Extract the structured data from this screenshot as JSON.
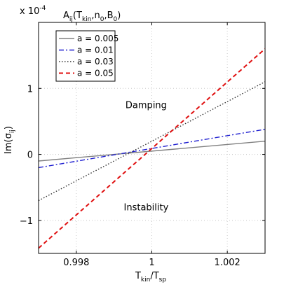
{
  "chart_data": {
    "type": "line",
    "title_prefix": "x 10",
    "title_exponent": "-4",
    "title_main": "A",
    "title_sub": "ij",
    "title_args": "(T",
    "title_args_sub": "kin",
    "title_args_rest": ",n",
    "title_n_sub": "0",
    "title_b": ",B",
    "title_b_sub": "0",
    "title_close": ")",
    "xlabel_main": "T",
    "xlabel_sub1": "kin",
    "xlabel_slash": "/T",
    "xlabel_sub2": "sp",
    "ylabel_main": "Im(σ",
    "ylabel_sub": "ij",
    "ylabel_close": ")",
    "xlim": [
      0.997,
      1.003
    ],
    "ylim": [
      -1.5,
      2.0
    ],
    "xticks": [
      0.998,
      1,
      1.002
    ],
    "xtick_labels": [
      "0.998",
      "1",
      "1.002"
    ],
    "yticks": [
      -1,
      0,
      1
    ],
    "ytick_labels": [
      "−1",
      "0",
      "1"
    ],
    "grid": true,
    "legend_position": "top-left",
    "annotations": [
      {
        "text": "Damping",
        "x": 0.99985,
        "y": 0.7
      },
      {
        "text": "Instability",
        "x": 0.99985,
        "y": -0.85
      }
    ],
    "series": [
      {
        "name": "a = 0.005",
        "color": "#808080",
        "dash": "solid",
        "x": [
          0.997,
          1.003
        ],
        "y": [
          -0.1,
          0.2
        ]
      },
      {
        "name": "a = 0.01",
        "color": "#1f1fd0",
        "dash": "dashdot",
        "x": [
          0.997,
          1.003
        ],
        "y": [
          -0.2,
          0.38
        ]
      },
      {
        "name": "a = 0.03",
        "color": "#333333",
        "dash": "dotted",
        "x": [
          0.997,
          1.003
        ],
        "y": [
          -0.7,
          1.1
        ]
      },
      {
        "name": "a = 0.05",
        "color": "#e01010",
        "dash": "dashed",
        "x": [
          0.997,
          1.003
        ],
        "y": [
          -1.42,
          1.6
        ]
      }
    ]
  }
}
